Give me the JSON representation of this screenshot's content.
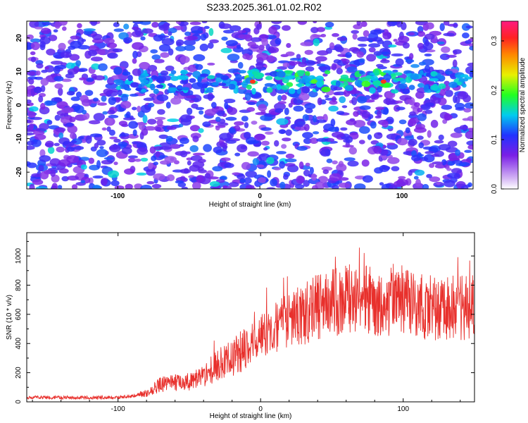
{
  "title": "S233.2025.361.01.02.R02",
  "colors": {
    "line": "#e8302c",
    "axis": "#000000",
    "spectrogram_bg": "#ffffff"
  },
  "chart_data": [
    {
      "type": "heatmap",
      "xlabel": "Height of straight line (km)",
      "ylabel": "Frequency (Hz)",
      "xlim": [
        -164,
        150
      ],
      "ylim": [
        -25,
        25
      ],
      "xticks": [
        -100,
        0,
        100
      ],
      "yticks": [
        -20,
        -10,
        0,
        10,
        20
      ],
      "colorbar": {
        "label": "Normalized spectral amplitude",
        "range": [
          0.0,
          0.34
        ],
        "ticks": [
          0.0,
          0.1,
          0.2,
          0.3
        ],
        "colormap": "rainbow (purple→blue→cyan→green→yellow→red→magenta)"
      },
      "feature": {
        "description_band_center_hz": 7,
        "peak_x_km": [
          -5,
          87
        ],
        "peak_amplitude": 0.3
      }
    },
    {
      "type": "line",
      "xlabel": "Height of straight line (km)",
      "ylabel": "SNR (10 * v/v)",
      "xlim": [
        -164,
        150
      ],
      "ylim": [
        0,
        1160
      ],
      "xticks": [
        -100,
        0,
        100
      ],
      "yticks": [
        0,
        200,
        400,
        600,
        800,
        1000
      ],
      "series": [
        {
          "x": [
            -164,
            -140,
            -120,
            -100,
            -90,
            -80,
            -70,
            -60,
            -50,
            -40,
            -30,
            -20,
            -10,
            0,
            10,
            20,
            30,
            40,
            60,
            80,
            100,
            120,
            140,
            150
          ],
          "values": [
            30,
            30,
            30,
            30,
            40,
            60,
            120,
            130,
            140,
            180,
            250,
            300,
            360,
            450,
            500,
            560,
            600,
            650,
            700,
            690,
            680,
            650,
            640,
            650
          ]
        }
      ]
    }
  ]
}
